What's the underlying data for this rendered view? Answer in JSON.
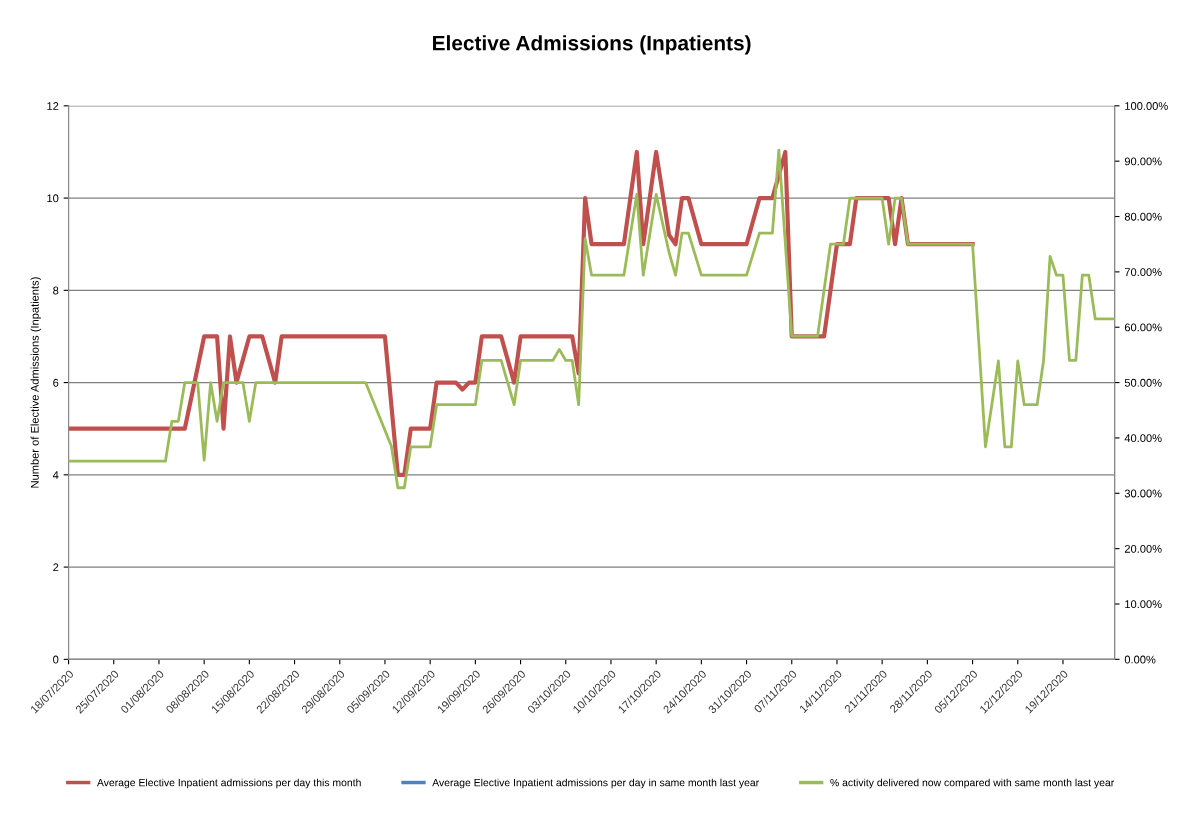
{
  "chart_data": {
    "type": "line",
    "title": "Elective Admissions (Inpatients)",
    "ylabel": "Number of Elective Admissions (Inpatients)",
    "xlim": [
      "2020-07-18",
      "2020-12-27"
    ],
    "xticks": [
      {
        "value": "2020-07-18",
        "label": "18/07/2020"
      },
      {
        "value": "2020-07-25",
        "label": "25/07/2020"
      },
      {
        "value": "2020-08-01",
        "label": "01/08/2020"
      },
      {
        "value": "2020-08-08",
        "label": "08/08/2020"
      },
      {
        "value": "2020-08-15",
        "label": "15/08/2020"
      },
      {
        "value": "2020-08-22",
        "label": "22/08/2020"
      },
      {
        "value": "2020-08-29",
        "label": "29/08/2020"
      },
      {
        "value": "2020-09-05",
        "label": "05/09/2020"
      },
      {
        "value": "2020-09-12",
        "label": "12/09/2020"
      },
      {
        "value": "2020-09-19",
        "label": "19/09/2020"
      },
      {
        "value": "2020-09-26",
        "label": "26/09/2020"
      },
      {
        "value": "2020-10-03",
        "label": "03/10/2020"
      },
      {
        "value": "2020-10-10",
        "label": "10/10/2020"
      },
      {
        "value": "2020-10-17",
        "label": "17/10/2020"
      },
      {
        "value": "2020-10-24",
        "label": "24/10/2020"
      },
      {
        "value": "2020-10-31",
        "label": "31/10/2020"
      },
      {
        "value": "2020-11-07",
        "label": "07/11/2020"
      },
      {
        "value": "2020-11-14",
        "label": "14/11/2020"
      },
      {
        "value": "2020-11-21",
        "label": "21/11/2020"
      },
      {
        "value": "2020-11-28",
        "label": "28/11/2020"
      },
      {
        "value": "2020-12-05",
        "label": "05/12/2020"
      },
      {
        "value": "2020-12-12",
        "label": "12/12/2020"
      },
      {
        "value": "2020-12-19",
        "label": "19/12/2020"
      }
    ],
    "ylim": [
      0,
      12
    ],
    "yticks": [
      0,
      2,
      4,
      6,
      8,
      10,
      12
    ],
    "y2lim": [
      0,
      100
    ],
    "y2ticks": [
      {
        "value": 0,
        "label": "0.00%"
      },
      {
        "value": 10,
        "label": "10.00%"
      },
      {
        "value": 20,
        "label": "20.00%"
      },
      {
        "value": 30,
        "label": "30.00%"
      },
      {
        "value": 40,
        "label": "40.00%"
      },
      {
        "value": 50,
        "label": "50.00%"
      },
      {
        "value": 60,
        "label": "60.00%"
      },
      {
        "value": 70,
        "label": "70.00%"
      },
      {
        "value": 80,
        "label": "80.00%"
      },
      {
        "value": 90,
        "label": "90.00%"
      },
      {
        "value": 100,
        "label": "100.00%"
      }
    ],
    "grid": "y",
    "legend": "bottom",
    "series": [
      {
        "name": "Average Elective Inpatient admissions per day this month",
        "color": "#c0504d",
        "x": [
          "2020-07-18",
          "2020-08-05",
          "2020-08-08",
          "2020-08-10",
          "2020-08-11",
          "2020-08-12",
          "2020-08-13",
          "2020-08-15",
          "2020-08-17",
          "2020-08-19",
          "2020-08-20",
          "2020-09-05",
          "2020-09-07",
          "2020-09-08",
          "2020-09-09",
          "2020-09-12",
          "2020-09-13",
          "2020-09-16",
          "2020-09-17",
          "2020-09-18",
          "2020-09-19",
          "2020-09-20",
          "2020-09-23",
          "2020-09-25",
          "2020-09-26",
          "2020-10-04",
          "2020-10-05",
          "2020-10-06",
          "2020-10-07",
          "2020-10-12",
          "2020-10-14",
          "2020-10-15",
          "2020-10-17",
          "2020-10-19",
          "2020-10-20",
          "2020-10-21",
          "2020-10-22",
          "2020-10-24",
          "2020-10-31",
          "2020-11-02",
          "2020-11-04",
          "2020-11-06",
          "2020-11-07",
          "2020-11-12",
          "2020-11-14",
          "2020-11-16",
          "2020-11-17",
          "2020-11-22",
          "2020-11-23",
          "2020-11-24",
          "2020-11-25",
          "2020-12-05"
        ],
        "values": [
          5,
          5,
          7,
          7,
          5,
          7,
          6,
          7,
          7,
          6,
          7,
          7,
          4,
          4,
          5,
          5,
          6,
          6,
          5.85,
          6,
          6,
          7,
          7,
          6,
          7,
          7,
          6.2,
          10,
          9,
          9,
          11,
          9,
          11,
          9.2,
          9,
          10,
          10,
          9,
          9,
          10,
          10,
          11,
          7,
          7,
          9,
          9,
          10,
          10,
          9,
          10,
          9,
          9
        ]
      },
      {
        "name": "Average Elective Inpatient admissions per day in same month last year",
        "color": "#4f81bd"
      },
      {
        "name": "% activity delivered now compared with same month last year",
        "color": "#9bbb59",
        "axis": "y2",
        "x": [
          "2020-07-18",
          "2020-08-02",
          "2020-08-03",
          "2020-08-04",
          "2020-08-05",
          "2020-08-07",
          "2020-08-08",
          "2020-08-09",
          "2020-08-10",
          "2020-08-11",
          "2020-08-14",
          "2020-08-15",
          "2020-08-16",
          "2020-09-02",
          "2020-09-06",
          "2020-09-07",
          "2020-09-08",
          "2020-09-09",
          "2020-09-12",
          "2020-09-13",
          "2020-09-19",
          "2020-09-20",
          "2020-09-23",
          "2020-09-25",
          "2020-09-26",
          "2020-10-01",
          "2020-10-02",
          "2020-10-03",
          "2020-10-04",
          "2020-10-05",
          "2020-10-06",
          "2020-10-07",
          "2020-10-12",
          "2020-10-14",
          "2020-10-15",
          "2020-10-17",
          "2020-10-19",
          "2020-10-20",
          "2020-10-21",
          "2020-10-22",
          "2020-10-24",
          "2020-10-31",
          "2020-11-02",
          "2020-11-04",
          "2020-11-05",
          "2020-11-07",
          "2020-11-11",
          "2020-11-13",
          "2020-11-15",
          "2020-11-16",
          "2020-11-21",
          "2020-11-22",
          "2020-11-23",
          "2020-11-24",
          "2020-11-25",
          "2020-12-05",
          "2020-12-07",
          "2020-12-09",
          "2020-12-10",
          "2020-12-11",
          "2020-12-12",
          "2020-12-13",
          "2020-12-15",
          "2020-12-16",
          "2020-12-17",
          "2020-12-18",
          "2020-12-19",
          "2020-12-20",
          "2020-12-21",
          "2020-12-22",
          "2020-12-23",
          "2020-12-24",
          "2020-12-27"
        ],
        "values": [
          35.8,
          35.8,
          43,
          43,
          50,
          50,
          36,
          50,
          43,
          50,
          50,
          43,
          50,
          50,
          38.5,
          31,
          31,
          38.4,
          38.4,
          46,
          46,
          54,
          54,
          46,
          54,
          54,
          56,
          54,
          54,
          46,
          76,
          69.4,
          69.4,
          84,
          69.4,
          84,
          73.5,
          69.4,
          77,
          77,
          69.4,
          69.4,
          77,
          77,
          92,
          58.4,
          58.4,
          75,
          75,
          83.3,
          83.3,
          75,
          83.3,
          83.3,
          75,
          75,
          38.4,
          53.9,
          38.4,
          38.4,
          53.9,
          46,
          46,
          54,
          72.8,
          69.4,
          69.4,
          54,
          54,
          69.4,
          69.4,
          61.5,
          61.5
        ]
      }
    ]
  }
}
